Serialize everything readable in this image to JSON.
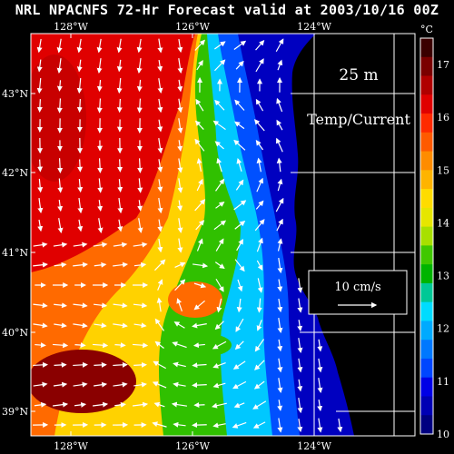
{
  "title": "NRL NPACNFS 72-Hr Forecast valid at 2003/10/16 00Z",
  "depth_label": "25 m",
  "field_label": "Temp/Current",
  "vector_key": {
    "label": "10 cm/s",
    "speed_cm_s": 10
  },
  "colorbar": {
    "unit": "°C",
    "range": [
      10,
      17.5
    ],
    "tick_labels": [
      "17",
      "16",
      "15",
      "14",
      "13",
      "12",
      "11",
      "10"
    ],
    "colors": [
      "#3a0000",
      "#7a0000",
      "#b00000",
      "#e00000",
      "#ff2a00",
      "#ff5a00",
      "#ff8c00",
      "#ffb400",
      "#ffdc00",
      "#e6e600",
      "#a8e000",
      "#40c800",
      "#00b400",
      "#00c896",
      "#00dcff",
      "#00aaff",
      "#0078ff",
      "#0046ff",
      "#0000e6",
      "#0000b4",
      "#000080"
    ]
  },
  "axes": {
    "lon_top": [
      "128°W",
      "126°W",
      "124°W"
    ],
    "lon_bottom": [
      "128°W",
      "126°W",
      "124°W"
    ],
    "lat_left": [
      "43°N",
      "42°N",
      "41°N",
      "40°N",
      "39°N"
    ]
  },
  "land_color": "#000000",
  "grid_color": "#ffffff",
  "vector_color": "#ffffff"
}
